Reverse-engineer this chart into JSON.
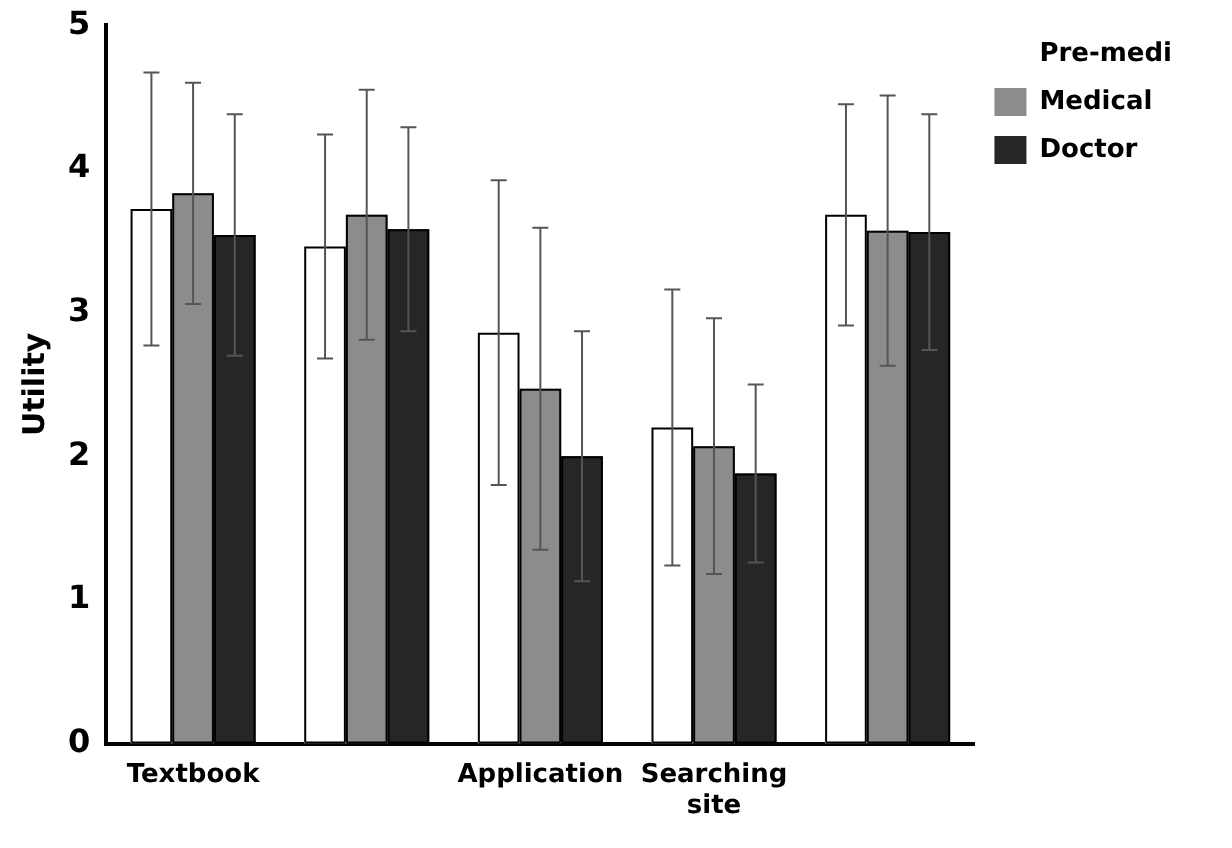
{
  "chart_data": {
    "type": "bar",
    "ylabel": "Utility",
    "categories": [
      "Textbook",
      null,
      "Application",
      "Searching site",
      null
    ],
    "series": [
      {
        "name": "Pre-medi",
        "color": "#ffffff",
        "values": [
          3.72,
          3.46,
          2.86,
          2.2,
          3.68
        ],
        "errors": [
          0.95,
          0.78,
          1.06,
          0.96,
          0.77
        ]
      },
      {
        "name": "Medical",
        "color": "#8c8c8c",
        "values": [
          3.83,
          3.68,
          2.47,
          2.07,
          3.57
        ],
        "errors": [
          0.77,
          0.87,
          1.12,
          0.89,
          0.94
        ]
      },
      {
        "name": "Doctor",
        "color": "#262626",
        "values": [
          3.54,
          3.58,
          2.0,
          1.88,
          3.56
        ],
        "errors": [
          0.84,
          0.71,
          0.87,
          0.62,
          0.82
        ]
      }
    ],
    "ylim": [
      0,
      5
    ],
    "yticks": [
      0,
      1,
      2,
      3,
      4,
      5
    ],
    "grid": false,
    "legend": "top right"
  }
}
